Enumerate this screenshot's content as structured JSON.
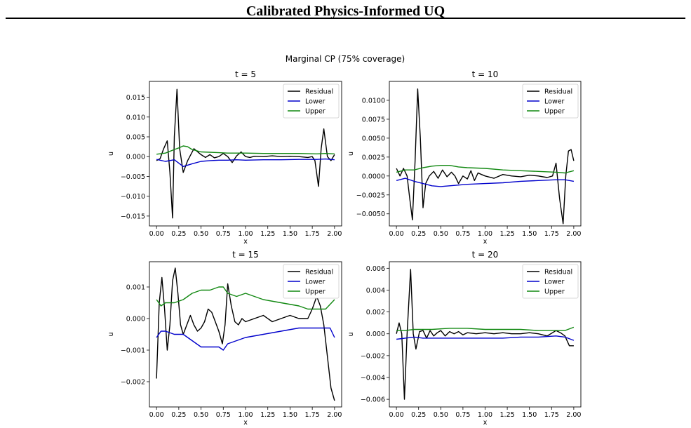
{
  "page": {
    "header": "Calibrated Physics-Informed UQ"
  },
  "figure": {
    "suptitle": "Marginal CP (75% coverage)"
  },
  "colors": {
    "Residual": "#000000",
    "Lower": "#0000cc",
    "Upper": "#118811"
  },
  "chart_data": [
    {
      "type": "line",
      "title": "t = 5",
      "xlabel": "x",
      "ylabel": "u",
      "xlim": [
        -0.08,
        2.08
      ],
      "ylim": [
        -0.0175,
        0.019
      ],
      "xticks": [
        0,
        0.25,
        0.5,
        0.75,
        1.0,
        1.25,
        1.5,
        1.75,
        2.0
      ],
      "xtick_labels": [
        "0.00",
        "0.25",
        "0.50",
        "0.75",
        "1.00",
        "1.25",
        "1.50",
        "1.75",
        "2.00"
      ],
      "yticks": [
        -0.015,
        -0.01,
        -0.005,
        0,
        0.005,
        0.01,
        0.015
      ],
      "ytick_labels": [
        "−0.015",
        "−0.010",
        "−0.005",
        "0.000",
        "0.005",
        "0.010",
        "0.015"
      ],
      "legend": {
        "position": "top-right",
        "entries": [
          "Residual",
          "Lower",
          "Upper"
        ]
      },
      "series": [
        {
          "name": "Residual",
          "x": [
            0.0,
            0.04,
            0.08,
            0.12,
            0.15,
            0.18,
            0.2,
            0.23,
            0.26,
            0.3,
            0.35,
            0.42,
            0.5,
            0.55,
            0.6,
            0.65,
            0.7,
            0.75,
            0.8,
            0.85,
            0.9,
            0.95,
            1.0,
            1.05,
            1.1,
            1.2,
            1.3,
            1.4,
            1.5,
            1.6,
            1.7,
            1.75,
            1.78,
            1.82,
            1.85,
            1.88,
            1.92,
            1.96,
            2.0
          ],
          "values": [
            -0.001,
            -0.0005,
            0.002,
            0.004,
            -0.004,
            -0.0155,
            0.005,
            0.017,
            0.002,
            -0.004,
            -0.001,
            0.002,
            0.0005,
            -0.0002,
            0.0005,
            -0.0003,
            0.0,
            0.0008,
            0.0,
            -0.0015,
            0.0002,
            0.0012,
            0.0,
            -0.0002,
            0.0001,
            0.0,
            0.0002,
            0.0,
            0.0001,
            0.0,
            -0.0002,
            0.0,
            -0.001,
            -0.0075,
            0.002,
            0.007,
            0.0,
            -0.001,
            0.0005
          ]
        },
        {
          "name": "Lower",
          "x": [
            0.0,
            0.1,
            0.2,
            0.3,
            0.4,
            0.5,
            0.6,
            0.7,
            0.8,
            0.9,
            1.0,
            1.2,
            1.4,
            1.6,
            1.8,
            1.9,
            2.0
          ],
          "values": [
            -0.0007,
            -0.0012,
            -0.0008,
            -0.0025,
            -0.0018,
            -0.0012,
            -0.001,
            -0.0009,
            -0.0009,
            -0.0008,
            -0.0009,
            -0.0008,
            -0.0008,
            -0.0007,
            -0.0007,
            -0.0006,
            -0.0008
          ]
        },
        {
          "name": "Upper",
          "x": [
            0.0,
            0.1,
            0.2,
            0.25,
            0.3,
            0.35,
            0.4,
            0.5,
            0.6,
            0.7,
            0.8,
            1.0,
            1.2,
            1.4,
            1.6,
            1.8,
            1.9,
            2.0
          ],
          "values": [
            0.0006,
            0.0009,
            0.0018,
            0.0022,
            0.0027,
            0.0025,
            0.0018,
            0.0012,
            0.0011,
            0.001,
            0.0009,
            0.0009,
            0.0008,
            0.0008,
            0.0008,
            0.0007,
            0.0008,
            0.0007
          ]
        }
      ]
    },
    {
      "type": "line",
      "title": "t = 10",
      "xlabel": "x",
      "ylabel": "u",
      "xlim": [
        -0.08,
        2.08
      ],
      "ylim": [
        -0.0066,
        0.0125
      ],
      "xticks": [
        0,
        0.25,
        0.5,
        0.75,
        1.0,
        1.25,
        1.5,
        1.75,
        2.0
      ],
      "xtick_labels": [
        "0.00",
        "0.25",
        "0.50",
        "0.75",
        "1.00",
        "1.25",
        "1.50",
        "1.75",
        "2.00"
      ],
      "yticks": [
        -0.005,
        -0.0025,
        0,
        0.0025,
        0.005,
        0.0075,
        0.01
      ],
      "ytick_labels": [
        "−0.0050",
        "−0.0025",
        "0.0000",
        "0.0025",
        "0.0050",
        "0.0075",
        "0.0100"
      ],
      "legend": {
        "position": "top-right",
        "entries": [
          "Residual",
          "Lower",
          "Upper"
        ]
      },
      "series": [
        {
          "name": "Residual",
          "x": [
            0.0,
            0.04,
            0.08,
            0.12,
            0.15,
            0.18,
            0.21,
            0.24,
            0.27,
            0.3,
            0.33,
            0.37,
            0.42,
            0.47,
            0.52,
            0.57,
            0.62,
            0.66,
            0.7,
            0.75,
            0.8,
            0.84,
            0.88,
            0.92,
            0.96,
            1.0,
            1.1,
            1.2,
            1.3,
            1.4,
            1.5,
            1.6,
            1.7,
            1.76,
            1.8,
            1.84,
            1.88,
            1.91,
            1.94,
            1.97,
            2.0
          ],
          "values": [
            0.001,
            0.0,
            0.001,
            0.0,
            -0.003,
            -0.0058,
            0.002,
            0.0115,
            0.005,
            -0.0042,
            -0.001,
            0.0,
            0.0006,
            -0.0003,
            0.0008,
            -0.0001,
            0.0005,
            0.0,
            -0.001,
            0.0,
            -0.0004,
            0.0007,
            -0.0006,
            0.0004,
            0.0002,
            0.0,
            -0.0003,
            0.0002,
            0.0,
            -0.0001,
            0.0001,
            0.0,
            -0.0002,
            0.0,
            0.0017,
            -0.003,
            -0.0063,
            0.0,
            0.0033,
            0.0035,
            0.002
          ]
        },
        {
          "name": "Lower",
          "x": [
            0.0,
            0.1,
            0.2,
            0.3,
            0.4,
            0.5,
            0.6,
            0.8,
            1.0,
            1.2,
            1.4,
            1.6,
            1.8,
            1.9,
            2.0
          ],
          "values": [
            -0.0006,
            -0.0003,
            -0.0007,
            -0.001,
            -0.0013,
            -0.0014,
            -0.0013,
            -0.0011,
            -0.001,
            -0.0009,
            -0.0007,
            -0.0006,
            -0.0005,
            -0.0005,
            -0.0007
          ]
        },
        {
          "name": "Upper",
          "x": [
            0.0,
            0.1,
            0.2,
            0.3,
            0.4,
            0.5,
            0.6,
            0.7,
            0.8,
            1.0,
            1.2,
            1.4,
            1.6,
            1.8,
            1.9,
            2.0
          ],
          "values": [
            0.0005,
            0.0008,
            0.0008,
            0.0011,
            0.0013,
            0.0014,
            0.0014,
            0.0012,
            0.0011,
            0.001,
            0.0008,
            0.0007,
            0.0006,
            0.0005,
            0.0004,
            0.0007
          ]
        }
      ]
    },
    {
      "type": "line",
      "title": "t = 15",
      "xlabel": "x",
      "ylabel": "u",
      "xlim": [
        -0.08,
        2.08
      ],
      "ylim": [
        -0.0028,
        0.0018
      ],
      "xticks": [
        0,
        0.25,
        0.5,
        0.75,
        1.0,
        1.25,
        1.5,
        1.75,
        2.0
      ],
      "xtick_labels": [
        "0.00",
        "0.25",
        "0.50",
        "0.75",
        "1.00",
        "1.25",
        "1.50",
        "1.75",
        "2.00"
      ],
      "yticks": [
        -0.002,
        -0.001,
        0,
        0.001
      ],
      "ytick_labels": [
        "−0.002",
        "−0.001",
        "0.000",
        "0.001"
      ],
      "legend": {
        "position": "top-right",
        "entries": [
          "Residual",
          "Lower",
          "Upper"
        ]
      },
      "series": [
        {
          "name": "Residual",
          "x": [
            0.0,
            0.03,
            0.06,
            0.09,
            0.12,
            0.15,
            0.18,
            0.21,
            0.24,
            0.27,
            0.3,
            0.34,
            0.38,
            0.42,
            0.46,
            0.5,
            0.54,
            0.58,
            0.62,
            0.66,
            0.7,
            0.74,
            0.77,
            0.8,
            0.84,
            0.88,
            0.92,
            0.96,
            1.0,
            1.1,
            1.2,
            1.3,
            1.4,
            1.5,
            1.6,
            1.7,
            1.75,
            1.8,
            1.84,
            1.88,
            1.92,
            1.96,
            2.0
          ],
          "values": [
            -0.0019,
            0.0005,
            0.0013,
            0.0003,
            -0.001,
            -0.0002,
            0.0012,
            0.0016,
            0.0008,
            -0.0002,
            -0.0005,
            -0.0002,
            0.0001,
            -0.0002,
            -0.0004,
            -0.0003,
            -0.0001,
            0.0003,
            0.0002,
            -0.0001,
            -0.0004,
            -0.0008,
            -0.0002,
            0.0011,
            0.0004,
            -0.0001,
            -0.0002,
            0.0,
            -0.0001,
            0.0,
            0.0001,
            -0.0001,
            0.0,
            0.0001,
            0.0,
            0.0,
            0.0003,
            0.0007,
            0.0004,
            -0.0002,
            -0.0012,
            -0.0022,
            -0.0026
          ]
        },
        {
          "name": "Lower",
          "x": [
            0.0,
            0.05,
            0.1,
            0.2,
            0.3,
            0.4,
            0.5,
            0.6,
            0.7,
            0.75,
            0.8,
            0.9,
            1.0,
            1.2,
            1.4,
            1.6,
            1.8,
            1.9,
            1.95,
            2.0
          ],
          "values": [
            -0.0006,
            -0.0004,
            -0.0004,
            -0.0005,
            -0.0005,
            -0.0007,
            -0.0009,
            -0.0009,
            -0.0009,
            -0.001,
            -0.0008,
            -0.0007,
            -0.0006,
            -0.0005,
            -0.0004,
            -0.0003,
            -0.0003,
            -0.0003,
            -0.0003,
            -0.0006
          ]
        },
        {
          "name": "Upper",
          "x": [
            0.0,
            0.05,
            0.1,
            0.2,
            0.3,
            0.4,
            0.5,
            0.6,
            0.7,
            0.75,
            0.8,
            0.9,
            1.0,
            1.2,
            1.4,
            1.6,
            1.7,
            1.8,
            1.9,
            2.0
          ],
          "values": [
            0.0006,
            0.0004,
            0.0005,
            0.0005,
            0.0006,
            0.0008,
            0.0009,
            0.0009,
            0.001,
            0.001,
            0.0008,
            0.0007,
            0.0008,
            0.0006,
            0.0005,
            0.0004,
            0.0003,
            0.0003,
            0.0003,
            0.0006
          ]
        }
      ]
    },
    {
      "type": "line",
      "title": "t = 20",
      "xlabel": "x",
      "ylabel": "u",
      "xlim": [
        -0.08,
        2.08
      ],
      "ylim": [
        -0.0067,
        0.0066
      ],
      "xticks": [
        0,
        0.25,
        0.5,
        0.75,
        1.0,
        1.25,
        1.5,
        1.75,
        2.0
      ],
      "xtick_labels": [
        "0.00",
        "0.25",
        "0.50",
        "0.75",
        "1.00",
        "1.25",
        "1.50",
        "1.75",
        "2.00"
      ],
      "yticks": [
        -0.006,
        -0.004,
        -0.002,
        0,
        0.002,
        0.004,
        0.006
      ],
      "ytick_labels": [
        "−0.006",
        "−0.004",
        "−0.002",
        "0.000",
        "0.002",
        "0.004",
        "0.006"
      ],
      "legend": {
        "position": "top-right",
        "entries": [
          "Residual",
          "Lower",
          "Upper"
        ]
      },
      "series": [
        {
          "name": "Residual",
          "x": [
            0.0,
            0.03,
            0.06,
            0.09,
            0.12,
            0.16,
            0.19,
            0.22,
            0.26,
            0.3,
            0.34,
            0.38,
            0.42,
            0.46,
            0.5,
            0.55,
            0.6,
            0.65,
            0.7,
            0.75,
            0.8,
            0.9,
            1.0,
            1.1,
            1.2,
            1.3,
            1.4,
            1.5,
            1.6,
            1.7,
            1.8,
            1.85,
            1.9,
            1.95,
            2.0
          ],
          "values": [
            0.0,
            0.001,
            0.0,
            -0.006,
            0.0,
            0.0059,
            0.0,
            -0.0014,
            0.0002,
            0.0003,
            -0.0004,
            0.0003,
            -0.0002,
            0.0001,
            0.0003,
            -0.0002,
            0.0002,
            0.0,
            0.0002,
            -0.0001,
            0.0001,
            0.0,
            0.0001,
            0.0,
            0.0001,
            0.0,
            0.0,
            0.0001,
            0.0,
            -0.0002,
            0.0003,
            0.0001,
            -0.0002,
            -0.0011,
            -0.0011
          ]
        },
        {
          "name": "Lower",
          "x": [
            0.0,
            0.1,
            0.2,
            0.3,
            0.4,
            0.6,
            0.8,
            1.0,
            1.2,
            1.4,
            1.6,
            1.8,
            1.9,
            2.0
          ],
          "values": [
            -0.0005,
            -0.0004,
            -0.0003,
            -0.0004,
            -0.0004,
            -0.0004,
            -0.0004,
            -0.0004,
            -0.0004,
            -0.0003,
            -0.0003,
            -0.0002,
            -0.0003,
            -0.0006
          ]
        },
        {
          "name": "Upper",
          "x": [
            0.0,
            0.1,
            0.2,
            0.3,
            0.4,
            0.6,
            0.8,
            1.0,
            1.2,
            1.4,
            1.6,
            1.8,
            1.9,
            2.0
          ],
          "values": [
            0.0003,
            0.0003,
            0.0004,
            0.0004,
            0.0004,
            0.0005,
            0.0005,
            0.0004,
            0.0004,
            0.0004,
            0.0003,
            0.0003,
            0.0003,
            0.0006
          ]
        }
      ]
    }
  ]
}
